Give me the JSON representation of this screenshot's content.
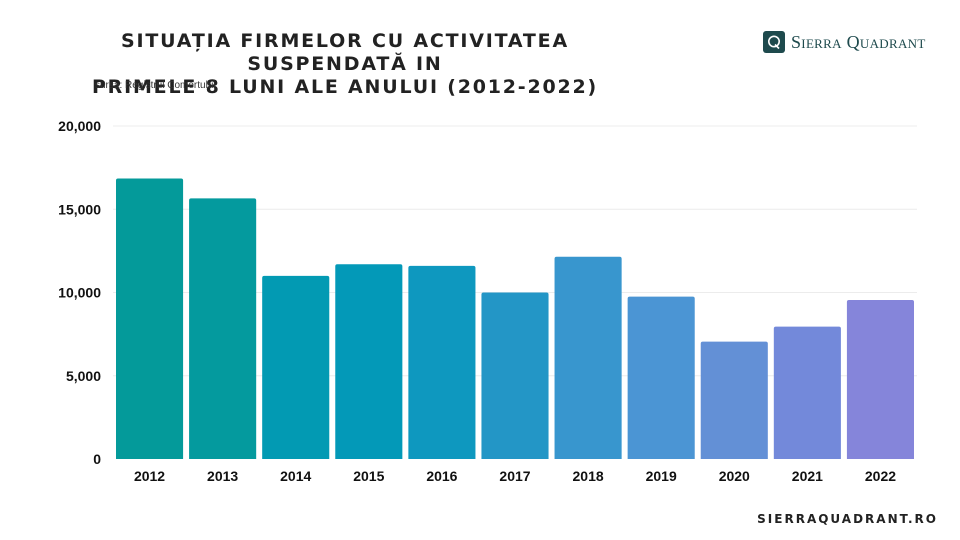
{
  "header": {
    "title_line1": "SITUAȚIA FIRMELOR CU ACTIVITATEA SUSPENDATĂ IN",
    "title_line2": "PRIMELE 8 LUNI ALE ANULUI (2012-2022)",
    "source": "sursa: Registrul Comertului"
  },
  "brand": {
    "logo_text": "Sierra Quadrant",
    "logo_icon": "q-monogram-icon",
    "footer_url": "SIERRAQUADRANT.RO",
    "color": "#1e4a4d"
  },
  "chart_data": {
    "type": "bar",
    "title": "SITUAȚIA FIRMELOR CU ACTIVITATEA SUSPENDATĂ IN PRIMELE 8 LUNI ALE ANULUI (2012-2022)",
    "xlabel": "",
    "ylabel": "",
    "categories": [
      "2012",
      "2013",
      "2014",
      "2015",
      "2016",
      "2017",
      "2018",
      "2019",
      "2020",
      "2021",
      "2022"
    ],
    "values": [
      16850,
      15650,
      11000,
      11700,
      11600,
      10000,
      12150,
      9750,
      7050,
      7950,
      9550
    ],
    "ylim": [
      0,
      20000
    ],
    "yticks": [
      0,
      5000,
      10000,
      15000,
      20000
    ],
    "ytick_labels": [
      "0",
      "5,000",
      "10,000",
      "15,000",
      "20,000"
    ],
    "grid": true,
    "bar_colors": [
      "#049a9a",
      "#049a9e",
      "#029ab3",
      "#0399b8",
      "#0e98bf",
      "#2396c6",
      "#3896ce",
      "#4b95d4",
      "#6390d6",
      "#7389da",
      "#8585da"
    ]
  }
}
